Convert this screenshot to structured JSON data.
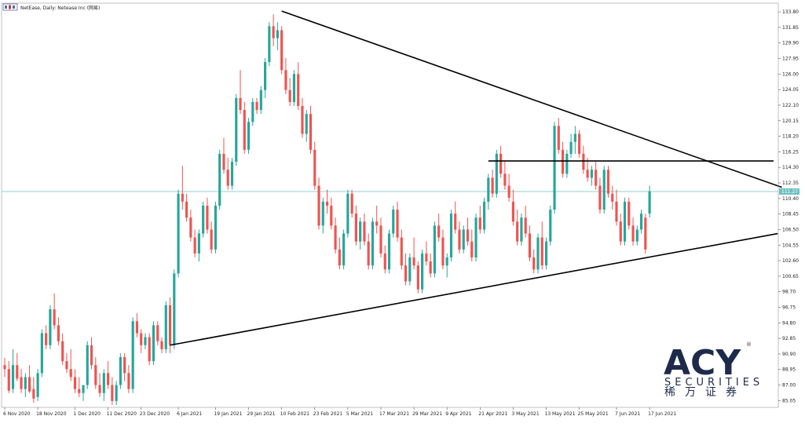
{
  "header": {
    "title": "NetEase, Daily:  Netease Inc  (网易)"
  },
  "colors": {
    "bull": "#26a69a",
    "bear": "#ef5350",
    "price_line": "#6fc0c0",
    "trendline": "#000000",
    "grid": "#d0d0d0",
    "logo": "#1e2a4a"
  },
  "logo": {
    "letters": "ACY",
    "registered": "®",
    "subtitle": "SECURITIES",
    "chinese": "稀万证券"
  },
  "chart_data": {
    "type": "candlestick",
    "ylim": [
      84.2,
      134.6
    ],
    "yticks": [
      "133.80",
      "131.85",
      "129.90",
      "127.95",
      "126.00",
      "124.05",
      "122.10",
      "120.15",
      "118.20",
      "116.25",
      "114.30",
      "112.35",
      "110.40",
      "108.45",
      "106.50",
      "104.55",
      "102.60",
      "100.65",
      "98.70",
      "96.75",
      "94.80",
      "92.85",
      "90.90",
      "88.95",
      "87.00",
      "85.05"
    ],
    "last_price": 111.27,
    "last_price_label": "111.27",
    "x_labels": [
      {
        "date": "6 Nov 2020",
        "index": 0
      },
      {
        "date": "18 Nov 2020",
        "index": 8
      },
      {
        "date": "1 Dec 2020",
        "index": 17
      },
      {
        "date": "11 Dec 2020",
        "index": 25
      },
      {
        "date": "23 Dec 2020",
        "index": 33
      },
      {
        "date": "6 Jan 2021",
        "index": 42
      },
      {
        "date": "19 Jan 2021",
        "index": 51
      },
      {
        "date": "29 Jan 2021",
        "index": 59
      },
      {
        "date": "10 Feb 2021",
        "index": 67
      },
      {
        "date": "23 Feb 2021",
        "index": 75
      },
      {
        "date": "5 Mar 2021",
        "index": 83
      },
      {
        "date": "17 Mar 2021",
        "index": 91
      },
      {
        "date": "29 Mar 2021",
        "index": 99
      },
      {
        "date": "9 Apr 2021",
        "index": 107
      },
      {
        "date": "21 Apr 2021",
        "index": 115
      },
      {
        "date": "3 May 2021",
        "index": 123
      },
      {
        "date": "13 May 2021",
        "index": 131
      },
      {
        "date": "25 May 2021",
        "index": 139
      },
      {
        "date": "7 Jun 2021",
        "index": 148
      },
      {
        "date": "17 Jun 2021",
        "index": 156
      }
    ],
    "trendlines": [
      {
        "name": "upper-resistance",
        "from": {
          "index": 67,
          "price": 133.9
        },
        "to": {
          "index": 188,
          "price": 111.8
        }
      },
      {
        "name": "lower-support",
        "from": {
          "index": 40,
          "price": 92.0
        },
        "to": {
          "index": 187,
          "price": 106.0
        }
      },
      {
        "name": "horizontal-resistance",
        "from": {
          "index": 117,
          "price": 115.1
        },
        "to": {
          "index": 186,
          "price": 115.1
        }
      }
    ],
    "candles": [
      [
        89.5,
        90.4,
        88.0,
        89.0
      ],
      [
        89.0,
        90.0,
        86.0,
        86.3
      ],
      [
        86.5,
        91.5,
        86.0,
        89.5
      ],
      [
        89.5,
        91.0,
        87.5,
        87.8
      ],
      [
        88.0,
        89.0,
        86.0,
        86.5
      ],
      [
        86.5,
        88.5,
        85.5,
        88.0
      ],
      [
        88.0,
        89.5,
        86.0,
        86.2
      ],
      [
        86.5,
        88.0,
        84.8,
        85.3
      ],
      [
        85.5,
        89.0,
        85.0,
        88.5
      ],
      [
        88.5,
        94.0,
        88.0,
        93.5
      ],
      [
        93.5,
        94.5,
        91.5,
        92.0
      ],
      [
        92.0,
        97.0,
        91.5,
        96.5
      ],
      [
        96.5,
        98.5,
        94.0,
        94.5
      ],
      [
        94.5,
        95.5,
        92.0,
        92.5
      ],
      [
        92.5,
        93.5,
        89.5,
        90.0
      ],
      [
        90.0,
        91.0,
        88.5,
        89.0
      ],
      [
        89.0,
        91.5,
        87.5,
        88.0
      ],
      [
        88.0,
        89.0,
        86.0,
        86.5
      ],
      [
        86.5,
        88.0,
        85.5,
        86.0
      ],
      [
        86.0,
        87.0,
        85.0,
        87.0
      ],
      [
        87.0,
        92.5,
        86.5,
        92.0
      ],
      [
        92.0,
        93.0,
        89.0,
        89.5
      ],
      [
        89.5,
        90.5,
        86.5,
        87.0
      ],
      [
        87.0,
        88.5,
        85.5,
        86.0
      ],
      [
        86.0,
        89.0,
        85.0,
        88.5
      ],
      [
        88.5,
        90.0,
        86.5,
        87.0
      ],
      [
        87.0,
        88.0,
        84.5,
        85.0
      ],
      [
        85.0,
        87.5,
        84.5,
        87.0
      ],
      [
        87.0,
        91.0,
        86.5,
        90.5
      ],
      [
        90.5,
        91.0,
        87.5,
        88.5
      ],
      [
        88.5,
        89.5,
        86.0,
        86.5
      ],
      [
        86.5,
        95.5,
        86.0,
        95.0
      ],
      [
        95.0,
        96.0,
        93.0,
        93.5
      ],
      [
        93.5,
        94.0,
        91.0,
        92.0
      ],
      [
        92.0,
        93.5,
        91.5,
        93.0
      ],
      [
        93.0,
        93.5,
        89.5,
        90.0
      ],
      [
        90.0,
        95.0,
        89.5,
        94.5
      ],
      [
        94.5,
        95.0,
        92.0,
        92.5
      ],
      [
        92.5,
        93.0,
        91.0,
        91.5
      ],
      [
        91.5,
        97.5,
        91.0,
        97.0
      ],
      [
        97.0,
        98.0,
        91.0,
        92.0
      ],
      [
        92.0,
        101.5,
        91.5,
        101.0
      ],
      [
        101.0,
        111.5,
        100.5,
        111.0
      ],
      [
        111.0,
        114.5,
        109.0,
        110.0
      ],
      [
        110.0,
        111.0,
        107.5,
        108.0
      ],
      [
        108.0,
        109.0,
        105.0,
        105.5
      ],
      [
        105.5,
        106.5,
        103.0,
        103.5
      ],
      [
        103.5,
        106.5,
        102.5,
        106.0
      ],
      [
        106.0,
        110.0,
        105.5,
        109.5
      ],
      [
        109.5,
        110.5,
        106.0,
        106.5
      ],
      [
        106.5,
        107.5,
        103.5,
        104.0
      ],
      [
        104.0,
        110.0,
        103.5,
        109.5
      ],
      [
        109.5,
        116.5,
        109.0,
        116.0
      ],
      [
        116.0,
        118.0,
        113.5,
        114.0
      ],
      [
        114.0,
        115.5,
        111.5,
        112.0
      ],
      [
        112.0,
        115.5,
        111.5,
        115.0
      ],
      [
        115.0,
        123.5,
        114.5,
        123.0
      ],
      [
        123.0,
        126.5,
        121.0,
        121.5
      ],
      [
        121.5,
        122.5,
        116.0,
        116.5
      ],
      [
        116.5,
        120.5,
        116.0,
        120.0
      ],
      [
        120.0,
        123.0,
        119.5,
        122.5
      ],
      [
        122.5,
        123.0,
        121.0,
        121.5
      ],
      [
        121.5,
        124.5,
        121.0,
        124.0
      ],
      [
        124.0,
        128.0,
        123.0,
        127.5
      ],
      [
        127.5,
        132.5,
        127.0,
        132.0
      ],
      [
        132.0,
        133.5,
        129.5,
        130.5
      ],
      [
        130.5,
        132.5,
        129.0,
        131.5
      ],
      [
        131.5,
        132.0,
        126.0,
        126.5
      ],
      [
        126.5,
        128.0,
        123.5,
        124.0
      ],
      [
        124.0,
        125.5,
        122.0,
        122.5
      ],
      [
        122.5,
        126.5,
        122.0,
        126.0
      ],
      [
        126.0,
        127.5,
        121.5,
        122.0
      ],
      [
        122.0,
        123.0,
        118.0,
        118.5
      ],
      [
        118.5,
        121.5,
        117.5,
        121.0
      ],
      [
        121.0,
        122.0,
        116.0,
        116.5
      ],
      [
        116.5,
        117.5,
        111.5,
        112.0
      ],
      [
        112.0,
        113.0,
        106.5,
        107.0
      ],
      [
        107.0,
        110.5,
        106.0,
        110.0
      ],
      [
        110.0,
        111.5,
        108.5,
        109.5
      ],
      [
        109.5,
        110.5,
        106.5,
        107.0
      ],
      [
        107.0,
        108.0,
        103.5,
        104.0
      ],
      [
        104.0,
        105.5,
        101.5,
        102.0
      ],
      [
        102.0,
        106.5,
        101.5,
        106.0
      ],
      [
        106.0,
        111.5,
        105.5,
        111.0
      ],
      [
        111.0,
        111.5,
        108.0,
        108.5
      ],
      [
        108.5,
        109.5,
        104.5,
        105.0
      ],
      [
        105.0,
        108.0,
        104.0,
        107.5
      ],
      [
        107.5,
        108.5,
        104.5,
        105.0
      ],
      [
        105.0,
        106.0,
        101.5,
        102.0
      ],
      [
        102.0,
        108.0,
        101.5,
        107.5
      ],
      [
        107.5,
        109.5,
        106.0,
        107.0
      ],
      [
        107.0,
        108.0,
        103.0,
        103.5
      ],
      [
        103.5,
        104.5,
        101.0,
        101.5
      ],
      [
        101.5,
        106.5,
        101.0,
        106.0
      ],
      [
        106.0,
        109.5,
        105.5,
        109.0
      ],
      [
        109.0,
        110.0,
        105.0,
        105.5
      ],
      [
        105.5,
        106.5,
        101.5,
        102.0
      ],
      [
        102.0,
        103.5,
        99.5,
        100.0
      ],
      [
        100.0,
        103.5,
        99.5,
        103.0
      ],
      [
        103.0,
        105.5,
        101.5,
        102.0
      ],
      [
        102.0,
        102.5,
        98.5,
        99.0
      ],
      [
        99.0,
        104.0,
        98.5,
        103.5
      ],
      [
        103.5,
        105.0,
        102.0,
        102.5
      ],
      [
        102.5,
        103.5,
        100.5,
        101.0
      ],
      [
        101.0,
        107.5,
        100.5,
        107.0
      ],
      [
        107.0,
        108.5,
        105.0,
        105.5
      ],
      [
        105.5,
        106.5,
        101.5,
        102.0
      ],
      [
        102.0,
        103.5,
        100.5,
        103.0
      ],
      [
        103.0,
        109.0,
        102.5,
        108.5
      ],
      [
        108.5,
        110.0,
        106.0,
        106.5
      ],
      [
        106.5,
        107.5,
        103.5,
        104.0
      ],
      [
        104.0,
        107.0,
        103.5,
        106.5
      ],
      [
        106.5,
        108.0,
        104.5,
        105.0
      ],
      [
        105.0,
        106.5,
        102.5,
        103.0
      ],
      [
        103.0,
        108.5,
        102.5,
        108.0
      ],
      [
        108.0,
        109.5,
        106.0,
        106.5
      ],
      [
        106.5,
        110.5,
        106.0,
        110.0
      ],
      [
        110.0,
        113.5,
        109.0,
        113.0
      ],
      [
        113.0,
        114.0,
        110.5,
        111.0
      ],
      [
        111.0,
        116.5,
        110.5,
        116.0
      ],
      [
        116.0,
        117.0,
        113.0,
        113.5
      ],
      [
        113.5,
        115.0,
        111.5,
        112.0
      ],
      [
        112.0,
        113.5,
        110.0,
        110.5
      ],
      [
        110.0,
        111.5,
        107.0,
        107.5
      ],
      [
        107.5,
        109.0,
        104.5,
        105.0
      ],
      [
        105.0,
        108.5,
        104.5,
        108.0
      ],
      [
        108.0,
        109.5,
        105.5,
        106.0
      ],
      [
        106.0,
        107.0,
        102.5,
        103.0
      ],
      [
        103.0,
        104.0,
        101.0,
        101.5
      ],
      [
        101.5,
        106.0,
        101.0,
        105.5
      ],
      [
        105.5,
        107.5,
        101.5,
        102.0
      ],
      [
        102.0,
        105.5,
        101.5,
        105.0
      ],
      [
        105.0,
        109.5,
        104.5,
        109.0
      ],
      [
        109.0,
        120.0,
        108.5,
        119.5
      ],
      [
        119.5,
        120.5,
        116.0,
        116.5
      ],
      [
        116.5,
        117.5,
        113.0,
        113.5
      ],
      [
        113.5,
        116.5,
        113.0,
        116.0
      ],
      [
        116.0,
        118.5,
        115.5,
        117.5
      ],
      [
        117.5,
        119.5,
        116.0,
        118.5
      ],
      [
        118.5,
        119.0,
        115.5,
        116.0
      ],
      [
        116.0,
        117.0,
        113.5,
        114.0
      ],
      [
        114.0,
        115.5,
        112.5,
        113.0
      ],
      [
        113.0,
        114.5,
        112.0,
        114.0
      ],
      [
        114.0,
        115.0,
        111.5,
        112.0
      ],
      [
        112.0,
        113.0,
        108.5,
        109.0
      ],
      [
        109.0,
        114.5,
        108.5,
        114.0
      ],
      [
        114.0,
        114.5,
        110.5,
        111.0
      ],
      [
        111.0,
        112.0,
        109.0,
        110.0
      ],
      [
        110.0,
        111.5,
        107.0,
        107.5
      ],
      [
        107.5,
        108.5,
        104.5,
        105.0
      ],
      [
        105.0,
        110.5,
        104.5,
        110.0
      ],
      [
        110.0,
        110.5,
        106.5,
        107.0
      ],
      [
        107.0,
        108.0,
        104.5,
        105.0
      ],
      [
        105.0,
        107.0,
        104.5,
        106.5
      ],
      [
        106.5,
        109.0,
        106.0,
        108.5
      ],
      [
        108.0,
        108.5,
        103.5,
        104.0
      ],
      [
        108.5,
        112.0,
        108.0,
        111.3
      ]
    ]
  }
}
